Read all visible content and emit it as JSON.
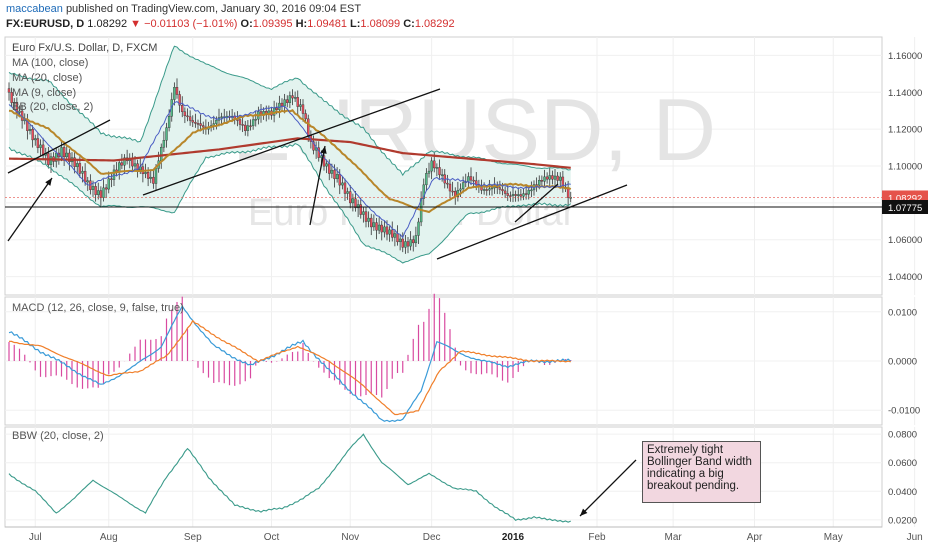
{
  "header": {
    "author": "maccabean",
    "published": "published on TradingView.com, January 30, 2016 09:04 EST",
    "symbol": "FX:EURUSD, D",
    "last": "1.08292",
    "change": "−0.01103 (−1.01%)",
    "o_label": "O:",
    "o_value": "1.09395",
    "h_label": "H:",
    "h_value": "1.09481",
    "l_label": "L:",
    "l_value": "1.08099",
    "c_label": "C:",
    "c_value": "1.08292"
  },
  "legend": {
    "title": "Euro Fx/U.S. Dollar, D, FXCM",
    "ma100": "MA (100, close)",
    "ma20": "MA (20, close)",
    "ma9": "MA (9, close)",
    "bb": "BB (20, close, 2)"
  },
  "watermark": {
    "symbol": "EURUSD, D",
    "name": "Euro Fx/U.S. Dollar"
  },
  "macd_label": "MACD (12, 26, close, 9, false, true)",
  "bbw_label": "BBW (20, close, 2)",
  "annotation": "Extremely tight Bollinger Band width indicating a big breakout pending.",
  "colors": {
    "up": "#53b987",
    "down": "#eb4d5c",
    "ma100": "#b03a2e",
    "ma20": "#b8862a",
    "ma9": "#4a5dc4",
    "bb": "#3a9a8a",
    "bbfill": "#e3f3ef",
    "macd": "#3a9bd8",
    "signal": "#f07f2a",
    "hist": "#d84aa0",
    "bbw": "#3a9a8a",
    "last_badge": "#e5534b",
    "line_badge": "#111111"
  },
  "chart_data": [
    {
      "type": "candlestick",
      "title": "",
      "ylim": [
        1.03,
        1.17
      ],
      "yticks": [
        "1.16000",
        "1.14000",
        "1.12000",
        "1.10000",
        "1.08000",
        "1.06000",
        "1.04000"
      ],
      "x_months": [
        "Jul",
        "Aug",
        "Sep",
        "Oct",
        "Nov",
        "Dec",
        "2016",
        "Feb",
        "Mar",
        "Apr",
        "May",
        "Jun"
      ],
      "price_levels": [
        {
          "label": "1.08292",
          "value": 1.08292
        },
        {
          "label": "1.07775",
          "value": 1.07775
        }
      ],
      "start_date": "2015-06-22",
      "close_anchors": [
        [
          0,
          1.138
        ],
        [
          5,
          1.128
        ],
        [
          10,
          1.112
        ],
        [
          15,
          1.102
        ],
        [
          20,
          1.11
        ],
        [
          25,
          1.1
        ],
        [
          30,
          1.09
        ],
        [
          35,
          1.086
        ],
        [
          40,
          1.095
        ],
        [
          45,
          1.104
        ],
        [
          50,
          1.1
        ],
        [
          55,
          1.09
        ],
        [
          60,
          1.12
        ],
        [
          63,
          1.145
        ],
        [
          66,
          1.13
        ],
        [
          70,
          1.122
        ],
        [
          75,
          1.12
        ],
        [
          80,
          1.128
        ],
        [
          85,
          1.125
        ],
        [
          90,
          1.12
        ],
        [
          95,
          1.13
        ],
        [
          100,
          1.127
        ],
        [
          105,
          1.135
        ],
        [
          108,
          1.14
        ],
        [
          112,
          1.13
        ],
        [
          115,
          1.11
        ],
        [
          120,
          1.102
        ],
        [
          125,
          1.095
        ],
        [
          130,
          1.08
        ],
        [
          135,
          1.074
        ],
        [
          140,
          1.068
        ],
        [
          145,
          1.062
        ],
        [
          150,
          1.058
        ],
        [
          155,
          1.062
        ],
        [
          158,
          1.09
        ],
        [
          161,
          1.1
        ],
        [
          165,
          1.095
        ],
        [
          170,
          1.085
        ],
        [
          175,
          1.092
        ],
        [
          180,
          1.088
        ],
        [
          185,
          1.09
        ],
        [
          190,
          1.082
        ],
        [
          195,
          1.085
        ],
        [
          200,
          1.09
        ],
        [
          205,
          1.092
        ],
        [
          210,
          1.094
        ],
        [
          214,
          1.083
        ]
      ],
      "series": [
        {
          "name": "MA (100, close)",
          "anchors": [
            [
              0,
              1.104
            ],
            [
              40,
              1.103
            ],
            [
              80,
              1.109
            ],
            [
              110,
              1.115
            ],
            [
              130,
              1.113
            ],
            [
              150,
              1.107
            ],
            [
              175,
              1.104
            ],
            [
              200,
              1.101
            ],
            [
              214,
              1.099
            ]
          ]
        },
        {
          "name": "MA (20, close)",
          "anchors": [
            [
              0,
              1.13
            ],
            [
              15,
              1.12
            ],
            [
              35,
              1.096
            ],
            [
              55,
              1.098
            ],
            [
              70,
              1.118
            ],
            [
              90,
              1.127
            ],
            [
              108,
              1.13
            ],
            [
              125,
              1.11
            ],
            [
              145,
              1.082
            ],
            [
              160,
              1.075
            ],
            [
              175,
              1.088
            ],
            [
              190,
              1.09
            ],
            [
              214,
              1.088
            ]
          ]
        },
        {
          "name": "MA (9, close)",
          "anchors": [
            [
              0,
              1.134
            ],
            [
              15,
              1.112
            ],
            [
              30,
              1.09
            ],
            [
              50,
              1.099
            ],
            [
              63,
              1.135
            ],
            [
              80,
              1.125
            ],
            [
              105,
              1.133
            ],
            [
              120,
              1.105
            ],
            [
              140,
              1.073
            ],
            [
              150,
              1.062
            ],
            [
              162,
              1.094
            ],
            [
              180,
              1.09
            ],
            [
              200,
              1.088
            ],
            [
              214,
              1.09
            ]
          ]
        },
        {
          "name": "BB upper",
          "anchors": [
            [
              0,
              1.15
            ],
            [
              15,
              1.146
            ],
            [
              35,
              1.118
            ],
            [
              50,
              1.113
            ],
            [
              63,
              1.165
            ],
            [
              75,
              1.155
            ],
            [
              100,
              1.142
            ],
            [
              110,
              1.148
            ],
            [
              120,
              1.135
            ],
            [
              135,
              1.12
            ],
            [
              150,
              1.095
            ],
            [
              160,
              1.108
            ],
            [
              175,
              1.105
            ],
            [
              195,
              1.1
            ],
            [
              214,
              1.098
            ]
          ]
        },
        {
          "name": "BB lower",
          "anchors": [
            [
              0,
              1.11
            ],
            [
              15,
              1.1
            ],
            [
              35,
              1.078
            ],
            [
              50,
              1.078
            ],
            [
              63,
              1.075
            ],
            [
              75,
              1.105
            ],
            [
              100,
              1.11
            ],
            [
              110,
              1.112
            ],
            [
              120,
              1.09
            ],
            [
              135,
              1.058
            ],
            [
              150,
              1.048
            ],
            [
              160,
              1.052
            ],
            [
              175,
              1.074
            ],
            [
              195,
              1.079
            ],
            [
              214,
              1.079
            ]
          ]
        }
      ]
    },
    {
      "type": "line",
      "title": "MACD (12, 26, close, 9, false, true)",
      "ylim": [
        -0.013,
        0.013
      ],
      "yticks": [
        "0.0100",
        "0.0000",
        "-0.0100"
      ],
      "series": [
        {
          "name": "MACD",
          "anchors": [
            [
              0,
              0.006
            ],
            [
              12,
              0.002
            ],
            [
              22,
              -0.001
            ],
            [
              35,
              -0.005
            ],
            [
              48,
              -0.001
            ],
            [
              58,
              0.003
            ],
            [
              66,
              0.011
            ],
            [
              78,
              0.003
            ],
            [
              92,
              -0.001
            ],
            [
              104,
              0.002
            ],
            [
              112,
              0.004
            ],
            [
              122,
              -0.002
            ],
            [
              132,
              -0.007
            ],
            [
              142,
              -0.012
            ],
            [
              150,
              -0.012
            ],
            [
              157,
              -0.006
            ],
            [
              163,
              0.004
            ],
            [
              170,
              0.002
            ],
            [
              180,
              0.0
            ],
            [
              190,
              -0.001
            ],
            [
              200,
              0.0
            ],
            [
              214,
              0.0
            ]
          ]
        },
        {
          "name": "Signal",
          "anchors": [
            [
              0,
              0.004
            ],
            [
              12,
              0.003
            ],
            [
              25,
              0.0
            ],
            [
              38,
              -0.003
            ],
            [
              50,
              -0.002
            ],
            [
              60,
              0.001
            ],
            [
              70,
              0.008
            ],
            [
              82,
              0.004
            ],
            [
              95,
              0.0
            ],
            [
              110,
              0.003
            ],
            [
              122,
              0.0
            ],
            [
              135,
              -0.005
            ],
            [
              147,
              -0.011
            ],
            [
              156,
              -0.01
            ],
            [
              164,
              -0.002
            ],
            [
              172,
              0.002
            ],
            [
              185,
              0.001
            ],
            [
              200,
              0.0
            ],
            [
              214,
              0.0
            ]
          ]
        }
      ]
    },
    {
      "type": "line",
      "title": "BBW (20, close, 2)",
      "ylim": [
        0.015,
        0.085
      ],
      "yticks": [
        "0.0800",
        "0.0600",
        "0.0400",
        "0.0200"
      ],
      "series": [
        {
          "name": "BBW",
          "anchors": [
            [
              0,
              0.052
            ],
            [
              10,
              0.04
            ],
            [
              18,
              0.025
            ],
            [
              25,
              0.035
            ],
            [
              32,
              0.048
            ],
            [
              42,
              0.036
            ],
            [
              52,
              0.025
            ],
            [
              60,
              0.05
            ],
            [
              68,
              0.07
            ],
            [
              76,
              0.05
            ],
            [
              86,
              0.03
            ],
            [
              96,
              0.026
            ],
            [
              104,
              0.028
            ],
            [
              112,
              0.035
            ],
            [
              118,
              0.042
            ],
            [
              130,
              0.07
            ],
            [
              135,
              0.08
            ],
            [
              142,
              0.06
            ],
            [
              152,
              0.045
            ],
            [
              160,
              0.052
            ],
            [
              170,
              0.042
            ],
            [
              178,
              0.04
            ],
            [
              186,
              0.028
            ],
            [
              193,
              0.02
            ],
            [
              200,
              0.022
            ],
            [
              205,
              0.02
            ],
            [
              214,
              0.019
            ]
          ]
        }
      ]
    }
  ]
}
